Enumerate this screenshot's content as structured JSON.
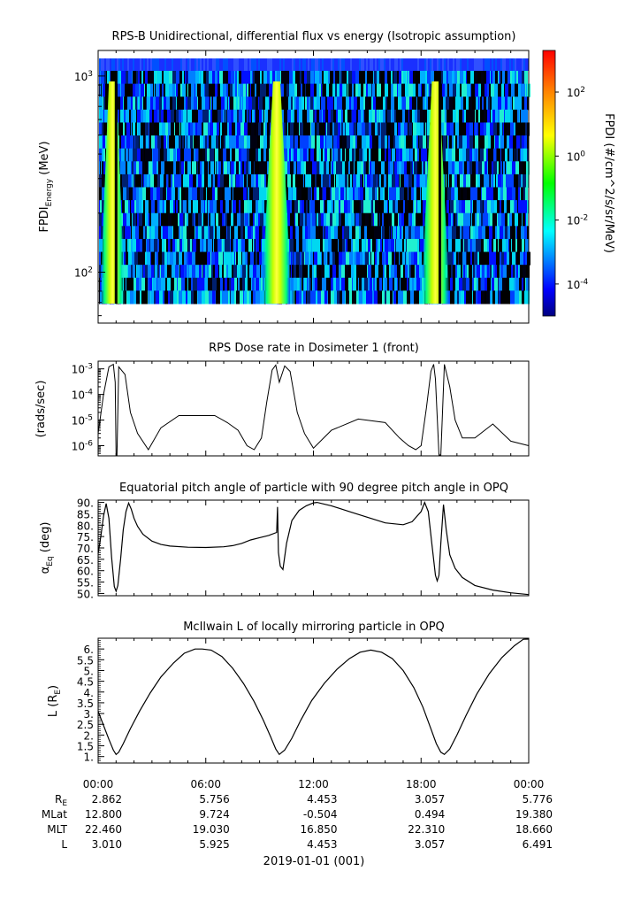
{
  "chart_data": [
    {
      "type": "heatmap",
      "title": "RPS-B  Unidirectional, differential flux vs energy (Isotropic assumption)",
      "ylabel_main": "FPDI",
      "ylabel_sub": "Energy",
      "ylabel_unit": " (MeV)",
      "yscale": "log",
      "ylim": [
        55,
        1350
      ],
      "yticks": [
        {
          "base": "10",
          "exp": "3",
          "value": 1000
        },
        {
          "base": "10",
          "exp": "2",
          "value": 100
        }
      ],
      "colorbar": {
        "label": "FPDI (#/cm^2/s/sr/MeV)",
        "scale": "log",
        "range": [
          1e-05,
          2000
        ],
        "ticks": [
          {
            "base": "10",
            "exp": "2",
            "value": 100
          },
          {
            "base": "10",
            "exp": "0",
            "value": 1
          },
          {
            "base": "10",
            "exp": "-2",
            "value": 0.01
          },
          {
            "base": "10",
            "exp": "-4",
            "value": 0.0001
          }
        ]
      },
      "hot_passes_hours": [
        [
          0.35,
          1.35
        ],
        [
          9.3,
          10.6
        ],
        [
          18.2,
          19.4
        ]
      ]
    },
    {
      "type": "line",
      "title": "RPS  Dose rate in Dosimeter 1 (front)",
      "ylabel": "(rads/sec)",
      "yscale": "log",
      "ylim": [
        4e-07,
        0.002
      ],
      "yticks": [
        {
          "base": "10",
          "exp": "-3",
          "value": 0.001
        },
        {
          "base": "10",
          "exp": "-4",
          "value": 0.0001
        },
        {
          "base": "10",
          "exp": "-5",
          "value": 1e-05
        },
        {
          "base": "10",
          "exp": "-6",
          "value": 1e-06
        }
      ],
      "series_hours": [
        0,
        0.3,
        0.6,
        0.85,
        0.95,
        1.0,
        1.05,
        1.15,
        1.5,
        1.8,
        2.2,
        2.8,
        3.5,
        4.5,
        5.5,
        6.5,
        7.2,
        7.8,
        8.3,
        8.7,
        9.1,
        9.4,
        9.7,
        9.9,
        10.1,
        10.4,
        10.7,
        11.1,
        11.5,
        12.0,
        13.0,
        14.5,
        16.0,
        16.8,
        17.3,
        17.7,
        18.0,
        18.3,
        18.55,
        18.7,
        18.8,
        19.0,
        19.1,
        19.3,
        19.6,
        19.9,
        20.3,
        21.0,
        22.0,
        23.0,
        24.0
      ],
      "series_values": [
        3e-06,
        0.0001,
        0.0012,
        0.0015,
        0.0003,
        4e-07,
        4e-07,
        0.0012,
        0.0006,
        2e-05,
        3e-06,
        7e-07,
        5e-06,
        1.5e-05,
        1.5e-05,
        1.5e-05,
        8e-06,
        4e-06,
        1e-06,
        7e-07,
        2e-06,
        5e-05,
        0.0009,
        0.0014,
        0.0003,
        0.0013,
        0.0008,
        2e-05,
        3e-06,
        8e-07,
        4e-06,
        1.1e-05,
        8e-06,
        2e-06,
        1e-06,
        7e-07,
        1e-06,
        3e-05,
        0.0008,
        0.0015,
        0.0004,
        4e-07,
        4e-07,
        0.0015,
        0.0002,
        1e-05,
        2e-06,
        2e-06,
        7e-06,
        1.5e-06,
        1e-06
      ]
    },
    {
      "type": "line",
      "title": "Equatorial pitch angle of particle with 90 degree pitch angle in OPQ",
      "ylabel_main": "α",
      "ylabel_sub": "Eq",
      "ylabel_unit": " (deg)",
      "ylim": [
        49,
        91
      ],
      "yticks": [
        90,
        85,
        80,
        75,
        70,
        65,
        60,
        55,
        50
      ],
      "series_hours": [
        0,
        0.15,
        0.3,
        0.45,
        0.6,
        0.75,
        0.9,
        1.0,
        1.1,
        1.25,
        1.4,
        1.55,
        1.7,
        1.85,
        2.0,
        2.2,
        2.5,
        3.0,
        3.5,
        4.0,
        5.0,
        6.0,
        7.0,
        7.5,
        8.0,
        8.5,
        9.0,
        9.5,
        9.95,
        10.0,
        10.05,
        10.15,
        10.3,
        10.5,
        10.8,
        11.2,
        11.6,
        12.0,
        12.2,
        13.0,
        14.0,
        15.0,
        16.0,
        17.0,
        17.5,
        18.0,
        18.2,
        18.4,
        18.6,
        18.8,
        18.9,
        19.0,
        19.1,
        19.25,
        19.4,
        19.6,
        19.9,
        20.3,
        21.0,
        22.0,
        23.0,
        24.0
      ],
      "series_values": [
        67.5,
        75,
        84,
        89.5,
        83,
        66,
        53,
        51,
        53.5,
        65,
        78,
        86,
        89.7,
        87,
        83,
        79.5,
        76,
        73,
        71.5,
        70.8,
        70.3,
        70.2,
        70.5,
        71,
        72,
        73.5,
        74.5,
        75.5,
        76.8,
        88,
        68,
        62,
        60.5,
        72,
        82,
        86.5,
        88.5,
        89.8,
        90,
        88.5,
        86,
        83.5,
        81,
        80.2,
        81.5,
        86,
        90,
        86,
        72,
        58,
        55.5,
        58,
        72,
        89,
        78,
        67,
        61,
        57,
        53.5,
        51.5,
        50.3,
        49.5
      ]
    },
    {
      "type": "line",
      "title": "McIlwain L of locally mirroring particle in OPQ",
      "ylabel_main": "L (R",
      "ylabel_sub": "E",
      "ylabel_unit": ")",
      "ylim": [
        0.7,
        6.5
      ],
      "yticks": [
        6,
        5.5,
        5,
        4.5,
        4,
        3.5,
        3,
        2.5,
        2,
        1.5,
        1
      ],
      "ytick_labels": [
        "6.",
        "5.",
        "4.",
        "3.",
        "2.",
        "1."
      ],
      "series_hours": [
        0,
        0.3,
        0.6,
        0.85,
        1.0,
        1.15,
        1.4,
        1.8,
        2.3,
        2.9,
        3.5,
        4.2,
        4.8,
        5.4,
        5.8,
        6.3,
        6.9,
        7.5,
        8.1,
        8.7,
        9.2,
        9.6,
        9.9,
        10.1,
        10.4,
        10.8,
        11.3,
        11.9,
        12.6,
        13.3,
        14.0,
        14.6,
        15.2,
        15.8,
        16.4,
        17.0,
        17.6,
        18.1,
        18.5,
        18.85,
        19.1,
        19.3,
        19.6,
        20.0,
        20.5,
        21.1,
        21.8,
        22.5,
        23.2,
        23.7,
        24.0
      ],
      "series_values": [
        3.1,
        2.45,
        1.8,
        1.3,
        1.1,
        1.2,
        1.6,
        2.3,
        3.1,
        3.95,
        4.7,
        5.35,
        5.8,
        6.0,
        6.0,
        5.95,
        5.65,
        5.1,
        4.4,
        3.55,
        2.7,
        1.95,
        1.35,
        1.1,
        1.3,
        1.85,
        2.7,
        3.6,
        4.4,
        5.05,
        5.55,
        5.85,
        5.95,
        5.85,
        5.55,
        5.0,
        4.2,
        3.3,
        2.4,
        1.6,
        1.2,
        1.1,
        1.35,
        2.0,
        2.9,
        3.9,
        4.85,
        5.6,
        6.15,
        6.45,
        6.55
      ]
    }
  ],
  "x_axis": {
    "xlim_hours": [
      0,
      24
    ],
    "row_headers": [
      {
        "main": "R",
        "sub": "E"
      },
      {
        "main": "MLat",
        "sub": ""
      },
      {
        "main": "MLT",
        "sub": ""
      },
      {
        "main": "L",
        "sub": ""
      }
    ],
    "columns": [
      {
        "hour": 0,
        "time": "00:00",
        "re": "2.862",
        "mlat": "12.800",
        "mlt": "22.460",
        "l": "3.010"
      },
      {
        "hour": 6,
        "time": "06:00",
        "re": "5.756",
        "mlat": "9.724",
        "mlt": "19.030",
        "l": "5.925"
      },
      {
        "hour": 12,
        "time": "12:00",
        "re": "4.453",
        "mlat": "-0.504",
        "mlt": "16.850",
        "l": "4.453"
      },
      {
        "hour": 18,
        "time": "18:00",
        "re": "3.057",
        "mlat": "0.494",
        "mlt": "22.310",
        "l": "3.057"
      },
      {
        "hour": 24,
        "time": "00:00",
        "re": "5.776",
        "mlat": "19.380",
        "mlt": "18.660",
        "l": "6.491"
      }
    ],
    "date_label": "2019-01-01 (001)"
  }
}
